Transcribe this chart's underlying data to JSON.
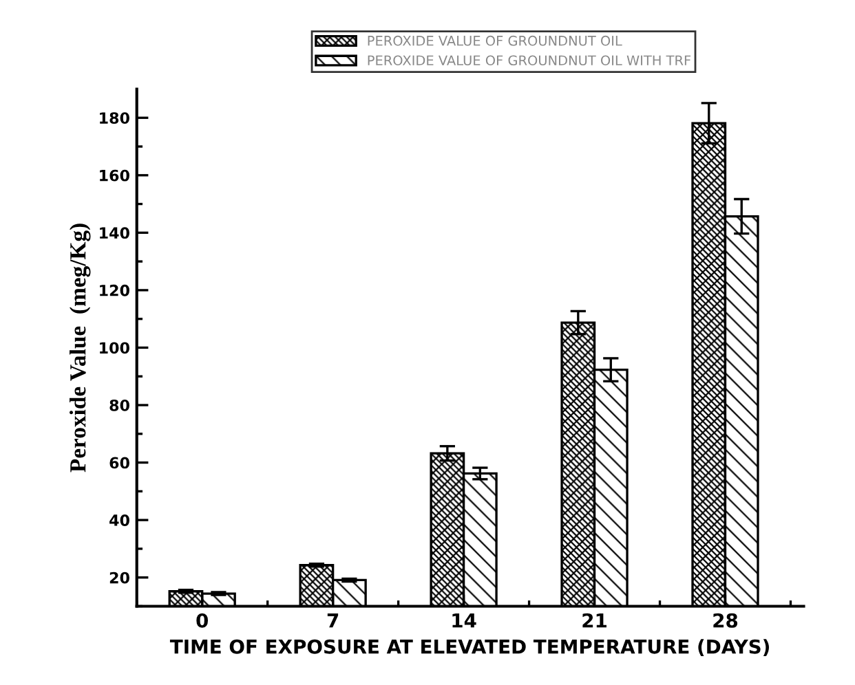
{
  "chart_data": {
    "type": "bar",
    "xlabel": "TIME OF EXPOSURE AT ELEVATED TEMPERATURE (DAYS)",
    "ylabel": "Peroxide Value  (meg/Kg)",
    "categories": [
      "0",
      "7",
      "14",
      "21",
      "28"
    ],
    "series": [
      {
        "name": "PEROXIDE VALUE OF GROUNDNUT OIL",
        "color": "#000000",
        "values": [
          15.2,
          24.3,
          63.2,
          108.7,
          178.1
        ],
        "errors": [
          0.5,
          0.5,
          2.5,
          4,
          7
        ]
      },
      {
        "name": "PEROXIDE VALUE OF GROUNDNUT OIL WITH TRF",
        "color": "#000000",
        "values": [
          14.4,
          19.1,
          56.2,
          92.3,
          145.7
        ],
        "errors": [
          0.5,
          0.5,
          2,
          4,
          6
        ]
      }
    ],
    "ylim": [
      10,
      190
    ],
    "yticks": [
      20,
      40,
      60,
      80,
      100,
      120,
      140,
      160,
      180
    ],
    "legend": "top",
    "grid": false
  }
}
